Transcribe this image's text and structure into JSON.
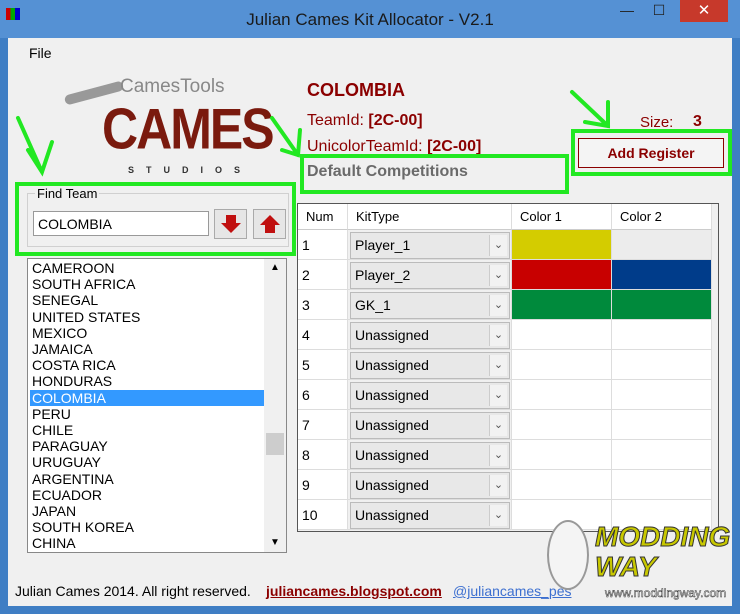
{
  "window": {
    "title": "Julian Cames Kit Allocator - V2.1",
    "minimize": "—",
    "maximize": "☐",
    "close": "✕"
  },
  "menu": {
    "file": "File"
  },
  "logo": {
    "text_top": "CamesTools",
    "text_main": "CAMES",
    "text_sub": "STUDIOS"
  },
  "team": {
    "name": "COLOMBIA",
    "teamid_label": "TeamId:",
    "teamid": "[2C-00]",
    "unicolor_label": "UnicolorTeamId:",
    "unicolor": "[2C-00]",
    "competitions": "Default Competitions",
    "size_label": "Size:",
    "size": "3"
  },
  "add_register": "Add Register",
  "find": {
    "label": "Find Team",
    "value": "COLOMBIA"
  },
  "teams": [
    "CAMEROON",
    "SOUTH AFRICA",
    "SENEGAL",
    "UNITED STATES",
    "MEXICO",
    "JAMAICA",
    "COSTA RICA",
    "HONDURAS",
    "COLOMBIA",
    "PERU",
    "CHILE",
    "PARAGUAY",
    "URUGUAY",
    "ARGENTINA",
    "ECUADOR",
    "JAPAN",
    "SOUTH KOREA",
    "CHINA"
  ],
  "selected_team": "COLOMBIA",
  "grid": {
    "headers": [
      "Num",
      "KitType",
      "Color 1",
      "Color 2"
    ],
    "rows": [
      {
        "num": "1",
        "kit": "Player_1",
        "c1": "#d4cc00",
        "c2": "#ececec"
      },
      {
        "num": "2",
        "kit": "Player_2",
        "c1": "#c80000",
        "c2": "#003c8a"
      },
      {
        "num": "3",
        "kit": "GK_1",
        "c1": "#008a3c",
        "c2": "#008a3c"
      },
      {
        "num": "4",
        "kit": "Unassigned",
        "c1": "#ffffff",
        "c2": "#ffffff"
      },
      {
        "num": "5",
        "kit": "Unassigned",
        "c1": "#ffffff",
        "c2": "#ffffff"
      },
      {
        "num": "6",
        "kit": "Unassigned",
        "c1": "#ffffff",
        "c2": "#ffffff"
      },
      {
        "num": "7",
        "kit": "Unassigned",
        "c1": "#ffffff",
        "c2": "#ffffff"
      },
      {
        "num": "8",
        "kit": "Unassigned",
        "c1": "#ffffff",
        "c2": "#ffffff"
      },
      {
        "num": "9",
        "kit": "Unassigned",
        "c1": "#ffffff",
        "c2": "#ffffff"
      },
      {
        "num": "10",
        "kit": "Unassigned",
        "c1": "#ffffff",
        "c2": "#ffffff"
      }
    ]
  },
  "footer": {
    "copyright": "Julian Cames 2014. All right reserved.",
    "blog": "juliancames.blogspot.com",
    "twitter": "@juliancames_pes"
  },
  "watermark": {
    "text": "MODDING WAY",
    "url": "www.moddingway.com"
  }
}
